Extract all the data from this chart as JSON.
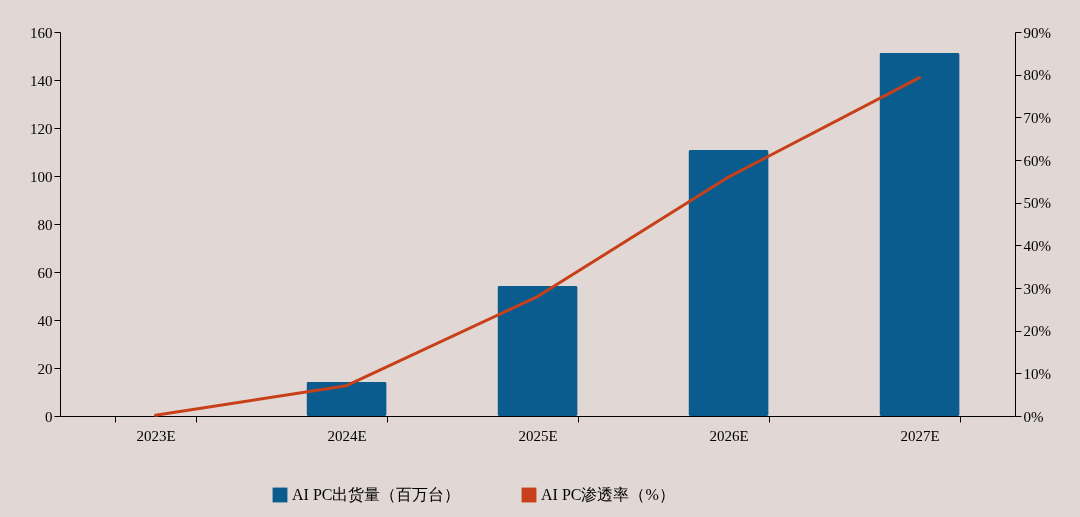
{
  "chart_data": {
    "type": "bar",
    "categories": [
      "2023E",
      "2024E",
      "2025E",
      "2026E",
      "2027E"
    ],
    "series": [
      {
        "name": "AI PC出货量（百万台）",
        "color": "#0a5c8f",
        "values": [
          0,
          14.2,
          54.2,
          110.8,
          151.3
        ]
      },
      {
        "name": "AI PC渗透率（%）",
        "type": "line",
        "axis": "y2",
        "color": "#c8401a",
        "values": [
          0.2,
          7.1,
          28,
          56,
          79.3
        ]
      }
    ],
    "ylim": [
      0,
      160
    ],
    "yticks": [
      0,
      20,
      40,
      60,
      80,
      100,
      120,
      140,
      160
    ],
    "y2lim": [
      0,
      90
    ],
    "y2ticks": [
      {
        "value": 0,
        "label": "0%"
      },
      {
        "value": 10,
        "label": "10%"
      },
      {
        "value": 20,
        "label": "20%"
      },
      {
        "value": 30,
        "label": "30%"
      },
      {
        "value": 40,
        "label": "40%"
      },
      {
        "value": 50,
        "label": "50%"
      },
      {
        "value": 60,
        "label": "60%"
      },
      {
        "value": 70,
        "label": "70%"
      },
      {
        "value": 80,
        "label": "80%"
      },
      {
        "value": 90,
        "label": "90%"
      }
    ],
    "grid": false,
    "legend": "bottom",
    "marker": "none",
    "line_style": "solid"
  }
}
